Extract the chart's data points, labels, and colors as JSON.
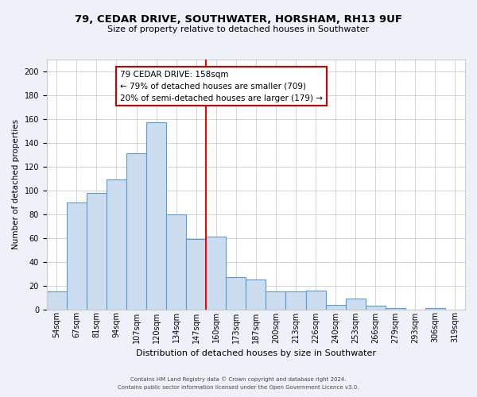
{
  "title_line1": "79, CEDAR DRIVE, SOUTHWATER, HORSHAM, RH13 9UF",
  "title_line2": "Size of property relative to detached houses in Southwater",
  "xlabel": "Distribution of detached houses by size in Southwater",
  "ylabel": "Number of detached properties",
  "footer_line1": "Contains HM Land Registry data © Crown copyright and database right 2024.",
  "footer_line2": "Contains public sector information licensed under the Open Government Licence v3.0.",
  "bin_labels": [
    "54sqm",
    "67sqm",
    "81sqm",
    "94sqm",
    "107sqm",
    "120sqm",
    "134sqm",
    "147sqm",
    "160sqm",
    "173sqm",
    "187sqm",
    "200sqm",
    "213sqm",
    "226sqm",
    "240sqm",
    "253sqm",
    "266sqm",
    "279sqm",
    "293sqm",
    "306sqm",
    "319sqm"
  ],
  "bar_heights": [
    15,
    90,
    98,
    109,
    131,
    157,
    80,
    59,
    61,
    27,
    25,
    15,
    15,
    16,
    4,
    9,
    3,
    1,
    0,
    1,
    0
  ],
  "bar_color": "#ccddf0",
  "bar_edge_color": "#5b9bd5",
  "reference_line_x": 8,
  "ylim": [
    0,
    210
  ],
  "yticks": [
    0,
    20,
    40,
    60,
    80,
    100,
    120,
    140,
    160,
    180,
    200
  ],
  "annotation_title": "79 CEDAR DRIVE: 158sqm",
  "annotation_line1": "← 79% of detached houses are smaller (709)",
  "annotation_line2": "20% of semi-detached houses are larger (179) →",
  "annotation_box_edge": "#cc0000",
  "bg_color": "#eef2f8",
  "plot_bg_color": "#ffffff",
  "grid_color": "#cccccc",
  "title_fontsize": 9.5,
  "subtitle_fontsize": 8,
  "ylabel_fontsize": 7.5,
  "xlabel_fontsize": 8,
  "tick_fontsize": 7,
  "footer_fontsize": 5,
  "ann_fontsize": 7.5
}
